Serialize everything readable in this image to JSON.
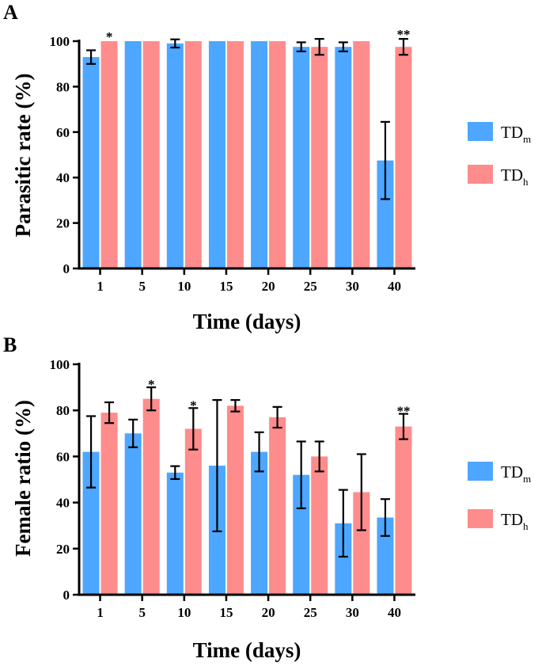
{
  "colors": {
    "TDm": "#4da6ff",
    "TDh": "#ff8c8c",
    "axis": "#000000"
  },
  "legend": [
    {
      "main": "TD",
      "sub": "m",
      "color": "#4da6ff"
    },
    {
      "main": "TD",
      "sub": "h",
      "color": "#ff8c8c"
    }
  ],
  "chart_data": [
    {
      "type": "bar",
      "panel": "A",
      "categories": [
        "1",
        "5",
        "10",
        "15",
        "20",
        "25",
        "30",
        "40"
      ],
      "series": [
        {
          "name": "TDm",
          "values": [
            93,
            100,
            99,
            100,
            100,
            97.5,
            97.5,
            47.5
          ],
          "errors": [
            3,
            0,
            1.8,
            0,
            0,
            2,
            2,
            17
          ]
        },
        {
          "name": "TDh",
          "values": [
            100,
            100,
            100,
            100,
            100,
            97.5,
            100,
            97.5
          ],
          "errors": [
            0,
            0,
            0,
            0,
            0,
            3.5,
            0,
            3.5
          ]
        }
      ],
      "significance": [
        {
          "category_index": 0,
          "label": "*"
        },
        {
          "category_index": 7,
          "label": "**"
        }
      ],
      "title": "",
      "xlabel": "Time (days)",
      "ylabel": "Parasitic rate (%)",
      "ylim": [
        0,
        100
      ],
      "yticks": [
        "0",
        "20",
        "40",
        "60",
        "80",
        "100"
      ]
    },
    {
      "type": "bar",
      "panel": "B",
      "categories": [
        "1",
        "5",
        "10",
        "15",
        "20",
        "25",
        "30",
        "40"
      ],
      "series": [
        {
          "name": "TDm",
          "values": [
            62,
            70,
            53,
            56,
            62,
            52,
            31,
            33.5
          ],
          "errors": [
            15.5,
            6,
            2.8,
            28.5,
            8.5,
            14.5,
            14.5,
            8
          ]
        },
        {
          "name": "TDh",
          "values": [
            79,
            85,
            72,
            82,
            77,
            60,
            44.5,
            73
          ],
          "errors": [
            4.5,
            5,
            9,
            2.5,
            4.5,
            6.5,
            16.5,
            5.5
          ]
        }
      ],
      "significance": [
        {
          "category_index": 1,
          "label": "*"
        },
        {
          "category_index": 2,
          "label": "*"
        },
        {
          "category_index": 7,
          "label": "**"
        }
      ],
      "title": "",
      "xlabel": "Time (days)",
      "ylabel": "Female ratio (%)",
      "ylim": [
        0,
        100
      ],
      "yticks": [
        "0",
        "20",
        "40",
        "60",
        "80",
        "100"
      ]
    }
  ]
}
